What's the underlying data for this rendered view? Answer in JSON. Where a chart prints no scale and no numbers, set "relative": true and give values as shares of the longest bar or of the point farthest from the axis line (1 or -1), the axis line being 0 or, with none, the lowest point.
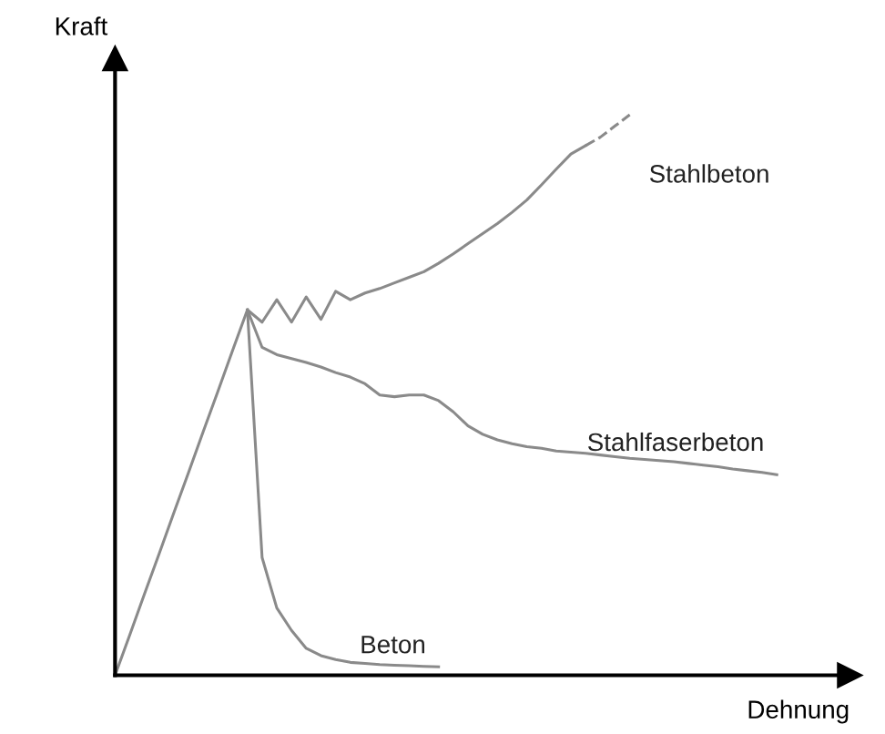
{
  "chart_data": {
    "type": "line",
    "relative": true,
    "xlabel": "Dehnung",
    "ylabel": "Kraft",
    "categories": [
      null,
      null,
      null,
      null,
      null,
      null,
      null,
      null,
      null,
      null,
      null,
      null,
      null,
      null,
      null,
      null,
      null,
      null,
      null,
      null,
      null,
      null,
      null,
      null,
      null,
      null,
      null,
      null,
      null,
      null,
      null,
      null,
      null,
      null,
      null,
      null,
      null,
      null,
      null,
      null,
      null,
      null,
      null,
      null,
      null,
      null
    ],
    "series": [
      {
        "name": "Stahlbeton",
        "color": "#8a8a8a",
        "line_style": "solid",
        "values": [
          0,
          0.072,
          0.145,
          0.217,
          0.29,
          0.362,
          0.435,
          0.507,
          0.58,
          0.652,
          0.63,
          0.67,
          0.63,
          0.675,
          0.635,
          0.685,
          0.67,
          0.682,
          0.69,
          0.7,
          0.71,
          0.72,
          0.735,
          0.752,
          0.77,
          0.788,
          0.806,
          0.826,
          0.848,
          0.875,
          0.903,
          0.93,
          0.945,
          null,
          null,
          null,
          null,
          null,
          null,
          null,
          null,
          null,
          null,
          null,
          null,
          null
        ]
      },
      {
        "color": "#8a8a8a",
        "line_style": "dashed",
        "values": [
          null,
          null,
          null,
          null,
          null,
          null,
          null,
          null,
          null,
          null,
          null,
          null,
          null,
          null,
          null,
          null,
          null,
          null,
          null,
          null,
          null,
          null,
          null,
          null,
          null,
          null,
          null,
          null,
          null,
          null,
          null,
          null,
          0.945,
          0.96,
          0.98,
          1,
          null,
          null,
          null,
          null,
          null,
          null,
          null,
          null,
          null,
          null
        ]
      },
      {
        "name": "Stahlfaserbeton",
        "color": "#8a8a8a",
        "line_style": "solid",
        "values": [
          null,
          null,
          null,
          null,
          null,
          null,
          null,
          null,
          null,
          0.652,
          0.585,
          0.572,
          0.565,
          0.558,
          0.55,
          0.54,
          0.532,
          0.52,
          0.5,
          0.497,
          0.5,
          0.5,
          0.49,
          0.47,
          0.445,
          0.43,
          0.42,
          0.413,
          0.408,
          0.405,
          0.4,
          0.398,
          0.396,
          0.393,
          0.39,
          0.387,
          0.385,
          0.383,
          0.381,
          0.378,
          0.375,
          0.372,
          0.368,
          0.365,
          0.362,
          0.358
        ]
      },
      {
        "name": "Beton",
        "color": "#8a8a8a",
        "line_style": "solid",
        "values": [
          null,
          null,
          null,
          null,
          null,
          null,
          null,
          null,
          null,
          0.652,
          0.21,
          0.12,
          0.08,
          0.048,
          0.035,
          0.028,
          0.023,
          0.021,
          0.019,
          0.018,
          0.017,
          0.016,
          0.015,
          null,
          null,
          null,
          null,
          null,
          null,
          null,
          null,
          null,
          null,
          null,
          null,
          null,
          null,
          null,
          null,
          null,
          null,
          null,
          null,
          null,
          null,
          null
        ]
      }
    ]
  }
}
